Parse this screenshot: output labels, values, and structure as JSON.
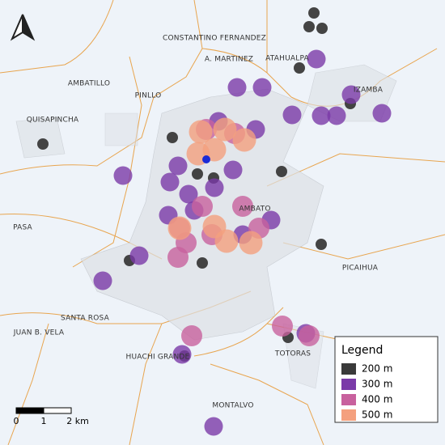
{
  "map": {
    "places": [
      "CONSTANTINO FERNANDEZ",
      "A. MARTINEZ",
      "ATAHUALPA",
      "IZAMBA",
      "PINLLO",
      "AMBATILLO",
      "QUISAPINCHA",
      "PASA",
      "AMBATO",
      "PICAIHUA",
      "SANTA ROSA",
      "JUAN B. VELA",
      "HUACHI GRANDE",
      "TOTORAS",
      "MONTALVO"
    ],
    "legend": {
      "title": "Legend",
      "items": [
        {
          "label": "200 m",
          "color": "#3a3a3a"
        },
        {
          "label": "300 m",
          "color": "#7a3aa8"
        },
        {
          "label": "400 m",
          "color": "#c8619e"
        },
        {
          "label": "500 m",
          "color": "#f4a07e"
        }
      ]
    },
    "scale_bar": {
      "labels": [
        "0",
        "1",
        "2 km"
      ]
    }
  }
}
